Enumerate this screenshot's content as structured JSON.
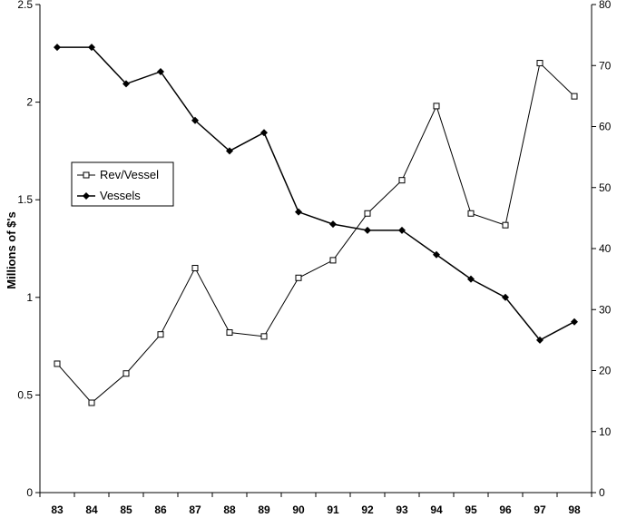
{
  "chart_data": {
    "type": "line",
    "title": "",
    "xlabel": "",
    "ylabel": "Millions of $'s",
    "y2label": "",
    "categories": [
      "83",
      "84",
      "85",
      "86",
      "87",
      "88",
      "89",
      "90",
      "91",
      "92",
      "93",
      "94",
      "95",
      "96",
      "97",
      "98"
    ],
    "ylim": [
      0,
      2.5
    ],
    "yticks": [
      "0",
      "0.5",
      "1",
      "1.5",
      "2",
      "2.5"
    ],
    "y2lim": [
      0,
      80
    ],
    "y2ticks": [
      "0",
      "10",
      "20",
      "30",
      "40",
      "50",
      "60",
      "70",
      "80"
    ],
    "grid": false,
    "legend_position": "left",
    "series": [
      {
        "name": "Rev/Vessel",
        "axis": "left",
        "marker": "hollow-square",
        "color": "#000000",
        "values": [
          0.66,
          0.46,
          0.61,
          0.81,
          1.15,
          0.82,
          0.8,
          1.1,
          1.19,
          1.43,
          1.6,
          1.98,
          1.43,
          1.37,
          2.2,
          2.03
        ]
      },
      {
        "name": "Vessels",
        "axis": "right",
        "marker": "filled-diamond",
        "color": "#000000",
        "values": [
          73,
          73,
          67,
          69,
          61,
          56,
          59,
          46,
          44,
          43,
          43,
          39,
          35,
          32,
          25,
          28
        ]
      }
    ]
  }
}
